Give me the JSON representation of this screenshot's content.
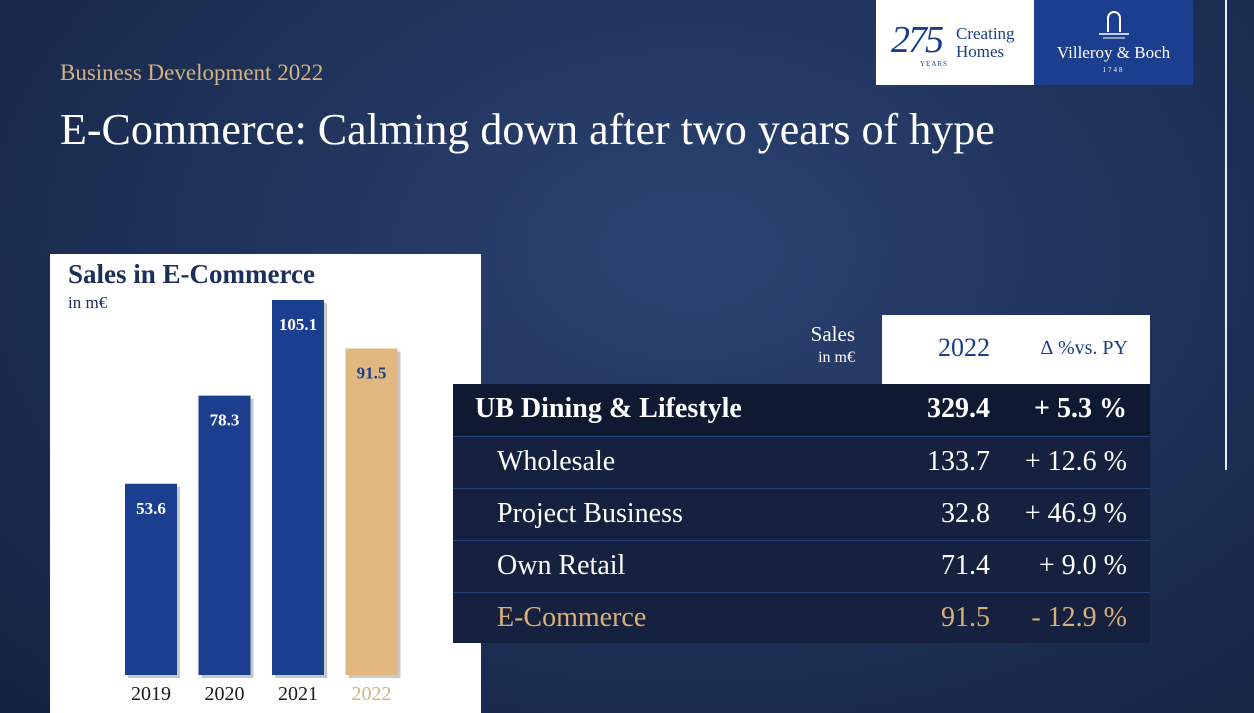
{
  "header": {
    "subtitle": "Business Development 2022",
    "title": "E-Commerce: Calming down after two years of hype"
  },
  "logo": {
    "number": "275",
    "years": "YEARS",
    "tagline": "Creating\nHomes",
    "brand": "Villeroy & Boch",
    "founded": "1748"
  },
  "chart_data": {
    "type": "bar",
    "title": "Sales in E-Commerce",
    "unit": "in m€",
    "categories": [
      "2019",
      "2020",
      "2021",
      "2022"
    ],
    "values": [
      53.6,
      78.3,
      105.1,
      91.5
    ],
    "ylim": [
      0,
      105.1
    ],
    "colors": [
      "#1b3f8e",
      "#1b3f8e",
      "#1b3f8e",
      "#e0b880"
    ],
    "label_colors": [
      "#ffffff",
      "#ffffff",
      "#ffffff",
      "#1b3f8e"
    ],
    "category_colors": [
      "#1a1a1a",
      "#1a1a1a",
      "#1a1a1a",
      "#d5b283"
    ],
    "grid": false
  },
  "table": {
    "head_sales": "Sales",
    "head_unit": "in m€",
    "head_year": "2022",
    "head_delta": "∆ %vs. PY",
    "rows": [
      {
        "label": "UB Dining & Lifestyle",
        "value": "329.4",
        "change": "+ 5.3 %",
        "style": "bold"
      },
      {
        "label": "Wholesale",
        "value": "133.7",
        "change": "+ 12.6 %",
        "style": "normal"
      },
      {
        "label": "Project Business",
        "value": "32.8",
        "change": "+ 46.9 %",
        "style": "normal"
      },
      {
        "label": "Own Retail",
        "value": "71.4",
        "change": "+ 9.0 %",
        "style": "normal"
      },
      {
        "label": "E-Commerce",
        "value": "91.5",
        "change": "- 12.9 %",
        "style": "gold"
      }
    ]
  }
}
